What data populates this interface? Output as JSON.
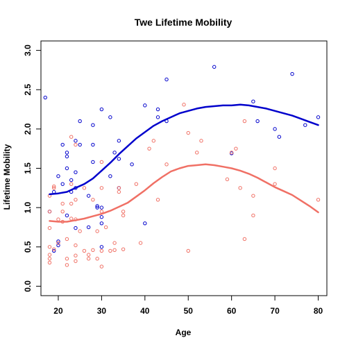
{
  "chart_data": {
    "type": "scatter",
    "title": "Twe Lifetime Mobility",
    "xlabel": "Age",
    "ylabel": "Lifetime Mobility",
    "xlim": [
      16,
      82
    ],
    "ylim": [
      -0.12,
      3.12
    ],
    "x_ticks": [
      20,
      30,
      40,
      50,
      60,
      70,
      80
    ],
    "y_ticks": [
      0.0,
      0.5,
      1.0,
      1.5,
      2.0,
      2.5,
      3.0
    ],
    "y_tick_labels": [
      "0.0",
      "0.5",
      "1.0",
      "1.5",
      "2.0",
      "2.5",
      "3.0"
    ],
    "grid": false,
    "legend": "none",
    "series": [
      {
        "color": "#0000cc",
        "marker": "open-circle",
        "points": [
          [
            17,
            2.4
          ],
          [
            18,
            0.95
          ],
          [
            19,
            0.45
          ],
          [
            19,
            1.2
          ],
          [
            20,
            1.4
          ],
          [
            20,
            0.52
          ],
          [
            20,
            0.57
          ],
          [
            21,
            1.8
          ],
          [
            21,
            1.3
          ],
          [
            22,
            1.7
          ],
          [
            22,
            1.65
          ],
          [
            22,
            1.5
          ],
          [
            22,
            0.9
          ],
          [
            23,
            1.35
          ],
          [
            23,
            1.2
          ],
          [
            24,
            1.85
          ],
          [
            24,
            1.45
          ],
          [
            24,
            1.25
          ],
          [
            24,
            0.74
          ],
          [
            25,
            2.1
          ],
          [
            25,
            1.8
          ],
          [
            27,
            0.75
          ],
          [
            27,
            1.15
          ],
          [
            28,
            2.05
          ],
          [
            28,
            1.8
          ],
          [
            28,
            1.58
          ],
          [
            29,
            1.0
          ],
          [
            29,
            1.02
          ],
          [
            30,
            2.25
          ],
          [
            30,
            1.0
          ],
          [
            30,
            0.88
          ],
          [
            30,
            0.8
          ],
          [
            30,
            0.5
          ],
          [
            32,
            2.15
          ],
          [
            32,
            1.4
          ],
          [
            33,
            1.7
          ],
          [
            34,
            1.85
          ],
          [
            34,
            1.62
          ],
          [
            34,
            1.25
          ],
          [
            37,
            1.55
          ],
          [
            40,
            2.3
          ],
          [
            40,
            0.8
          ],
          [
            43,
            2.25
          ],
          [
            43,
            2.15
          ],
          [
            45,
            2.63
          ],
          [
            45,
            2.1
          ],
          [
            56,
            2.79
          ],
          [
            60,
            1.69
          ],
          [
            65,
            2.35
          ],
          [
            66,
            2.1
          ],
          [
            70,
            2.0
          ],
          [
            71,
            1.9
          ],
          [
            74,
            2.7
          ],
          [
            77,
            2.05
          ],
          [
            80,
            2.15
          ]
        ],
        "curve": [
          [
            18,
            1.17
          ],
          [
            20,
            1.18
          ],
          [
            22,
            1.2
          ],
          [
            24,
            1.25
          ],
          [
            26,
            1.3
          ],
          [
            28,
            1.37
          ],
          [
            30,
            1.47
          ],
          [
            32,
            1.57
          ],
          [
            34,
            1.68
          ],
          [
            36,
            1.78
          ],
          [
            38,
            1.88
          ],
          [
            40,
            1.96
          ],
          [
            42,
            2.04
          ],
          [
            44,
            2.1
          ],
          [
            46,
            2.15
          ],
          [
            48,
            2.2
          ],
          [
            50,
            2.23
          ],
          [
            52,
            2.26
          ],
          [
            54,
            2.28
          ],
          [
            56,
            2.29
          ],
          [
            58,
            2.3
          ],
          [
            60,
            2.3
          ],
          [
            62,
            2.31
          ],
          [
            64,
            2.3
          ],
          [
            66,
            2.28
          ],
          [
            68,
            2.26
          ],
          [
            70,
            2.23
          ],
          [
            72,
            2.2
          ],
          [
            74,
            2.17
          ],
          [
            76,
            2.13
          ],
          [
            78,
            2.09
          ],
          [
            80,
            2.05
          ]
        ]
      },
      {
        "color": "#f07065",
        "marker": "open-circle",
        "points": [
          [
            18,
            1.15
          ],
          [
            18,
            0.95
          ],
          [
            18,
            0.74
          ],
          [
            18,
            0.5
          ],
          [
            18,
            0.4
          ],
          [
            18,
            0.35
          ],
          [
            18,
            0.3
          ],
          [
            19,
            1.27
          ],
          [
            19,
            1.25
          ],
          [
            19,
            0.47
          ],
          [
            20,
            0.55
          ],
          [
            20,
            0.85
          ],
          [
            21,
            1.05
          ],
          [
            21,
            0.95
          ],
          [
            21,
            0.82
          ],
          [
            22,
            0.6
          ],
          [
            22,
            0.35
          ],
          [
            22,
            0.27
          ],
          [
            23,
            1.9
          ],
          [
            23,
            1.3
          ],
          [
            23,
            1.05
          ],
          [
            23,
            0.86
          ],
          [
            24,
            1.8
          ],
          [
            24,
            1.1
          ],
          [
            24,
            0.85
          ],
          [
            24,
            0.52
          ],
          [
            24,
            0.39
          ],
          [
            24,
            0.32
          ],
          [
            25,
            0.7
          ],
          [
            26,
            1.25
          ],
          [
            26,
            0.45
          ],
          [
            27,
            0.4
          ],
          [
            27,
            0.35
          ],
          [
            28,
            0.46
          ],
          [
            28,
            1.1
          ],
          [
            29,
            0.7
          ],
          [
            29,
            0.35
          ],
          [
            30,
            1.58
          ],
          [
            30,
            1.25
          ],
          [
            30,
            0.95
          ],
          [
            30,
            0.25
          ],
          [
            30,
            0.45
          ],
          [
            31,
            0.75
          ],
          [
            32,
            0.45
          ],
          [
            33,
            0.55
          ],
          [
            33,
            0.46
          ],
          [
            34,
            1.25
          ],
          [
            34,
            1.2
          ],
          [
            35,
            0.95
          ],
          [
            35,
            0.9
          ],
          [
            35,
            0.47
          ],
          [
            38,
            1.3
          ],
          [
            39,
            0.55
          ],
          [
            41,
            1.75
          ],
          [
            42,
            1.85
          ],
          [
            43,
            1.1
          ],
          [
            45,
            1.55
          ],
          [
            49,
            2.31
          ],
          [
            50,
            1.95
          ],
          [
            50,
            0.45
          ],
          [
            52,
            1.7
          ],
          [
            53,
            1.85
          ],
          [
            59,
            1.36
          ],
          [
            60,
            1.7
          ],
          [
            61,
            1.75
          ],
          [
            62,
            1.25
          ],
          [
            63,
            2.1
          ],
          [
            63,
            0.6
          ],
          [
            65,
            1.15
          ],
          [
            65,
            0.9
          ],
          [
            70,
            1.5
          ],
          [
            70,
            1.3
          ],
          [
            80,
            1.1
          ]
        ],
        "curve": [
          [
            18,
            0.83
          ],
          [
            20,
            0.82
          ],
          [
            22,
            0.82
          ],
          [
            24,
            0.84
          ],
          [
            26,
            0.86
          ],
          [
            28,
            0.89
          ],
          [
            30,
            0.92
          ],
          [
            32,
            0.96
          ],
          [
            34,
            1.01
          ],
          [
            36,
            1.06
          ],
          [
            38,
            1.14
          ],
          [
            40,
            1.22
          ],
          [
            42,
            1.31
          ],
          [
            44,
            1.39
          ],
          [
            46,
            1.46
          ],
          [
            48,
            1.5
          ],
          [
            50,
            1.53
          ],
          [
            52,
            1.54
          ],
          [
            54,
            1.55
          ],
          [
            56,
            1.54
          ],
          [
            58,
            1.52
          ],
          [
            60,
            1.5
          ],
          [
            62,
            1.47
          ],
          [
            64,
            1.43
          ],
          [
            66,
            1.38
          ],
          [
            68,
            1.32
          ],
          [
            70,
            1.26
          ],
          [
            72,
            1.21
          ],
          [
            74,
            1.16
          ],
          [
            76,
            1.09
          ],
          [
            78,
            1.02
          ],
          [
            80,
            0.94
          ]
        ]
      }
    ]
  }
}
